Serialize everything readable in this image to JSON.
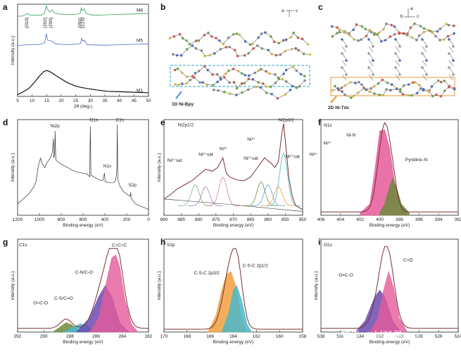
{
  "figure": {
    "panel_letters": [
      "a",
      "b",
      "c",
      "d",
      "e",
      "f",
      "g",
      "h",
      "i"
    ],
    "watermark": "知乎 @材料最Top"
  },
  "colors": {
    "m8": "#3a9a5c",
    "m5": "#4a6fc0",
    "m1": "#111111",
    "pink": "#e55a9a",
    "purple": "#6a4bb0",
    "olive": "#6f8a3e",
    "orange": "#f0a040",
    "cyan": "#4bb7c9",
    "fit": "#7a3030",
    "raw": "#333333",
    "nisat1": "#7fb37a",
    "nisat2": "#a07ac0",
    "nisat3": "#e07aa0",
    "nisat4": "#5aa0c8"
  },
  "panel_b": {
    "axis_labels": [
      "a",
      "c"
    ],
    "caption": "1D Ni-Bpy"
  },
  "panel_c": {
    "axis_labels": [
      "a",
      "b",
      "c"
    ],
    "caption": "2D Ni-Tdc"
  },
  "chart_data": [
    {
      "id": "a",
      "type": "line",
      "xlabel": "2θ (deg.)",
      "ylabel": "Intensity (a.u.)",
      "xlim": [
        5,
        50
      ],
      "xticks": [
        5,
        10,
        15,
        20,
        25,
        30,
        35,
        40,
        45,
        50
      ],
      "annotations": [
        "(010)",
        "(202)",
        "(200)",
        "(004)",
        "(124)"
      ],
      "series": [
        {
          "name": "M8",
          "points": [
            [
              5,
              0.87
            ],
            [
              6.5,
              0.87
            ],
            [
              8,
              0.89
            ],
            [
              8.6,
              0.9
            ],
            [
              9,
              0.885
            ],
            [
              11,
              0.88
            ],
            [
              13,
              0.88
            ],
            [
              14.2,
              0.9
            ],
            [
              14.9,
              0.98
            ],
            [
              15.2,
              0.95
            ],
            [
              16,
              0.915
            ],
            [
              16.9,
              0.94
            ],
            [
              17.4,
              0.91
            ],
            [
              19,
              0.895
            ],
            [
              22,
              0.89
            ],
            [
              25,
              0.89
            ],
            [
              26.5,
              0.9
            ],
            [
              26.9,
              0.96
            ],
            [
              27.3,
              0.93
            ],
            [
              27.9,
              0.95
            ],
            [
              28.5,
              0.9
            ],
            [
              31,
              0.88
            ],
            [
              35,
              0.885
            ],
            [
              40,
              0.89
            ],
            [
              45,
              0.895
            ],
            [
              50,
              0.9
            ]
          ]
        },
        {
          "name": "M5",
          "points": [
            [
              5,
              0.55
            ],
            [
              8,
              0.56
            ],
            [
              12,
              0.56
            ],
            [
              14.3,
              0.58
            ],
            [
              14.9,
              0.68
            ],
            [
              15.3,
              0.61
            ],
            [
              16.8,
              0.6
            ],
            [
              18,
              0.57
            ],
            [
              22,
              0.56
            ],
            [
              26.6,
              0.57
            ],
            [
              27,
              0.63
            ],
            [
              27.4,
              0.6
            ],
            [
              27.9,
              0.61
            ],
            [
              29,
              0.56
            ],
            [
              35,
              0.555
            ],
            [
              40,
              0.56
            ],
            [
              45,
              0.565
            ],
            [
              50,
              0.57
            ]
          ]
        },
        {
          "name": "M1",
          "points": [
            [
              5,
              0.02
            ],
            [
              7,
              0.05
            ],
            [
              9,
              0.09
            ],
            [
              11,
              0.16
            ],
            [
              12.5,
              0.22
            ],
            [
              14,
              0.27
            ],
            [
              15,
              0.28
            ],
            [
              16,
              0.27
            ],
            [
              18,
              0.23
            ],
            [
              20,
              0.19
            ],
            [
              22,
              0.15
            ],
            [
              25,
              0.11
            ],
            [
              28,
              0.09
            ],
            [
              32,
              0.07
            ],
            [
              36,
              0.055
            ],
            [
              40,
              0.05
            ],
            [
              45,
              0.045
            ],
            [
              50,
              0.04
            ]
          ]
        }
      ]
    },
    {
      "id": "d",
      "type": "line",
      "xlabel": "Binding energy (eV)",
      "ylabel": "Intensity (a.u.)",
      "xlim": [
        1200,
        0
      ],
      "xticks": [
        1200,
        1000,
        800,
        600,
        400,
        200,
        0
      ],
      "annotations": [
        "Ni2p",
        "O1s",
        "C1s",
        "N1s",
        "S2p"
      ],
      "series": [
        {
          "name": "survey",
          "points": [
            [
              1200,
              0.12
            ],
            [
              1150,
              0.17
            ],
            [
              1100,
              0.22
            ],
            [
              1050,
              0.3
            ],
            [
              1030,
              0.36
            ],
            [
              1010,
              0.52
            ],
            [
              1000,
              0.55
            ],
            [
              990,
              0.6
            ],
            [
              975,
              0.54
            ],
            [
              950,
              0.5
            ],
            [
              930,
              0.55
            ],
            [
              900,
              0.6
            ],
            [
              880,
              0.66
            ],
            [
              872,
              0.8
            ],
            [
              868,
              0.6
            ],
            [
              860,
              0.64
            ],
            [
              856,
              0.88
            ],
            [
              850,
              0.58
            ],
            [
              820,
              0.55
            ],
            [
              780,
              0.52
            ],
            [
              740,
              0.5
            ],
            [
              700,
              0.47
            ],
            [
              650,
              0.45
            ],
            [
              600,
              0.44
            ],
            [
              560,
              0.43
            ],
            [
              540,
              0.4
            ],
            [
              533,
              0.93
            ],
            [
              528,
              0.42
            ],
            [
              500,
              0.4
            ],
            [
              450,
              0.37
            ],
            [
              420,
              0.36
            ],
            [
              403,
              0.44
            ],
            [
              398,
              0.35
            ],
            [
              360,
              0.34
            ],
            [
              320,
              0.34
            ],
            [
              300,
              0.36
            ],
            [
              290,
              0.48
            ],
            [
              286,
              0.95
            ],
            [
              282,
              0.38
            ],
            [
              260,
              0.3
            ],
            [
              230,
              0.25
            ],
            [
              200,
              0.22
            ],
            [
              168,
              0.2
            ],
            [
              163,
              0.24
            ],
            [
              160,
              0.18
            ],
            [
              120,
              0.12
            ],
            [
              80,
              0.1
            ],
            [
              40,
              0.08
            ],
            [
              0,
              0.06
            ]
          ]
        }
      ]
    },
    {
      "id": "e",
      "type": "line",
      "xlabel": "Binding energy (eV)",
      "ylabel": "Intensity (a.u.)",
      "xlim": [
        890,
        850
      ],
      "xticks": [
        890,
        885,
        880,
        875,
        870,
        865,
        860,
        855,
        850
      ],
      "annotations": [
        "Ni2p1/2",
        "Ni³⁺",
        "Ni²⁺sat",
        "Ni³⁺sat",
        "Ni2p3/2",
        "Ni³⁺",
        "Ni²⁺sat",
        "Ni³⁺sat",
        "Ni²⁺",
        "Ni²⁺"
      ],
      "series": [
        {
          "name": "raw",
          "points": [
            [
              890,
              0.17
            ],
            [
              888,
              0.22
            ],
            [
              886,
              0.28
            ],
            [
              884,
              0.32
            ],
            [
              882,
              0.36
            ],
            [
              880,
              0.42
            ],
            [
              878,
              0.48
            ],
            [
              876,
              0.46
            ],
            [
              874.5,
              0.5
            ],
            [
              873,
              0.6
            ],
            [
              872,
              0.44
            ],
            [
              871,
              0.4
            ],
            [
              869,
              0.37
            ],
            [
              867,
              0.36
            ],
            [
              865,
              0.4
            ],
            [
              863,
              0.5
            ],
            [
              862,
              0.55
            ],
            [
              861,
              0.6
            ],
            [
              859,
              0.54
            ],
            [
              858,
              0.5
            ],
            [
              857,
              0.56
            ],
            [
              856,
              0.85
            ],
            [
              855.5,
              0.96
            ],
            [
              855,
              0.78
            ],
            [
              854,
              0.4
            ],
            [
              853,
              0.2
            ],
            [
              852,
              0.1
            ],
            [
              850,
              0.06
            ]
          ]
        },
        {
          "name": "background",
          "points": [
            [
              890,
              0.17
            ],
            [
              870,
              0.11
            ],
            [
              856,
              0.06
            ],
            [
              850,
              0.04
            ]
          ]
        }
      ]
    },
    {
      "id": "f",
      "type": "line",
      "xlabel": "Binding energy (eV)",
      "ylabel": "",
      "xlim": [
        406,
        392
      ],
      "xticks": [
        406,
        404,
        402,
        400,
        398,
        396,
        394,
        392
      ],
      "annotations": [
        "N1s",
        "Ni-N",
        "Pyridinic-N"
      ],
      "series": [
        {
          "name": "Ni-N",
          "points": [
            [
              402,
              0.02
            ],
            [
              401,
              0.1
            ],
            [
              400.5,
              0.4
            ],
            [
              400,
              0.75
            ],
            [
              399.5,
              0.76
            ],
            [
              399,
              0.6
            ],
            [
              398.5,
              0.3
            ],
            [
              398,
              0.1
            ],
            [
              397,
              0.02
            ]
          ]
        },
        {
          "name": "Pyridinic-N",
          "points": [
            [
              400,
              0.02
            ],
            [
              399.5,
              0.1
            ],
            [
              399,
              0.25
            ],
            [
              398.7,
              0.33
            ],
            [
              398.3,
              0.25
            ],
            [
              397.8,
              0.1
            ],
            [
              397,
              0.02
            ]
          ]
        }
      ]
    },
    {
      "id": "g",
      "type": "line",
      "xlabel": "Binding energy (eV)",
      "ylabel": "Intensity (a.u.)",
      "xlim": [
        292,
        282
      ],
      "xticks": [
        292,
        290,
        288,
        286,
        284,
        282
      ],
      "annotations": [
        "C1s",
        "O=C-O",
        "C-S/C=O",
        "C-N/C-O",
        "C=C=C"
      ],
      "series": [
        {
          "name": "O=C-O",
          "points": [
            [
              289.3,
              0.0
            ],
            [
              288.8,
              0.05
            ],
            [
              288.3,
              0.1
            ],
            [
              287.9,
              0.08
            ],
            [
              287.4,
              0.03
            ],
            [
              287,
              0.0
            ]
          ]
        },
        {
          "name": "C-S/C=O",
          "points": [
            [
              288.5,
              0.0
            ],
            [
              287.8,
              0.05
            ],
            [
              287.2,
              0.09
            ],
            [
              286.6,
              0.06
            ],
            [
              286,
              0.0
            ]
          ]
        },
        {
          "name": "C-N/C-O",
          "points": [
            [
              287.5,
              0.0
            ],
            [
              286.5,
              0.15
            ],
            [
              285.8,
              0.38
            ],
            [
              285.3,
              0.5
            ],
            [
              284.8,
              0.38
            ],
            [
              284.2,
              0.1
            ],
            [
              283.5,
              0.0
            ]
          ]
        },
        {
          "name": "C=C=C",
          "points": [
            [
              286.5,
              0.0
            ],
            [
              285.8,
              0.15
            ],
            [
              285.2,
              0.55
            ],
            [
              284.8,
              0.8
            ],
            [
              284.5,
              0.83
            ],
            [
              284.2,
              0.7
            ],
            [
              283.8,
              0.35
            ],
            [
              283.3,
              0.08
            ],
            [
              282.8,
              0.0
            ]
          ]
        }
      ]
    },
    {
      "id": "h",
      "type": "line",
      "xlabel": "Binding energy (eV)",
      "ylabel": "Intensity (a.u.)",
      "xlim": [
        170,
        158
      ],
      "xticks": [
        170,
        168,
        166,
        164,
        162,
        160,
        158
      ],
      "annotations": [
        "S2p",
        "C-S-C 2p3/2",
        "C-S-C 2p1/2"
      ],
      "series": [
        {
          "name": "C-S-C 2p3/2",
          "points": [
            [
              166.2,
              0.0
            ],
            [
              165.5,
              0.18
            ],
            [
              165,
              0.45
            ],
            [
              164.6,
              0.62
            ],
            [
              164.2,
              0.65
            ],
            [
              163.8,
              0.5
            ],
            [
              163.3,
              0.15
            ],
            [
              162.8,
              0.0
            ]
          ]
        },
        {
          "name": "C-S-C 2p1/2",
          "points": [
            [
              165,
              0.0
            ],
            [
              164.4,
              0.2
            ],
            [
              164,
              0.45
            ],
            [
              163.7,
              0.5
            ],
            [
              163.3,
              0.35
            ],
            [
              162.8,
              0.08
            ],
            [
              162.4,
              0.0
            ]
          ]
        }
      ]
    },
    {
      "id": "i",
      "type": "line",
      "xlabel": "Binding energy (eV)",
      "ylabel": "Intensity (a.u.)",
      "xlim": [
        538,
        524
      ],
      "xticks": [
        538,
        536,
        534,
        532,
        530,
        528,
        526,
        524
      ],
      "annotations": [
        "O1s",
        "O=C-O",
        "C=O"
      ],
      "series": [
        {
          "name": "O=C-O",
          "points": [
            [
              534.5,
              0.0
            ],
            [
              533.5,
              0.12
            ],
            [
              532.5,
              0.38
            ],
            [
              532,
              0.45
            ],
            [
              531.5,
              0.38
            ],
            [
              530.6,
              0.1
            ],
            [
              529.8,
              0.0
            ]
          ]
        },
        {
          "name": "C=O",
          "points": [
            [
              533,
              0.0
            ],
            [
              532.2,
              0.15
            ],
            [
              531.6,
              0.45
            ],
            [
              531.1,
              0.65
            ],
            [
              530.6,
              0.48
            ],
            [
              530,
              0.15
            ],
            [
              529.2,
              0.0
            ]
          ]
        }
      ]
    }
  ]
}
